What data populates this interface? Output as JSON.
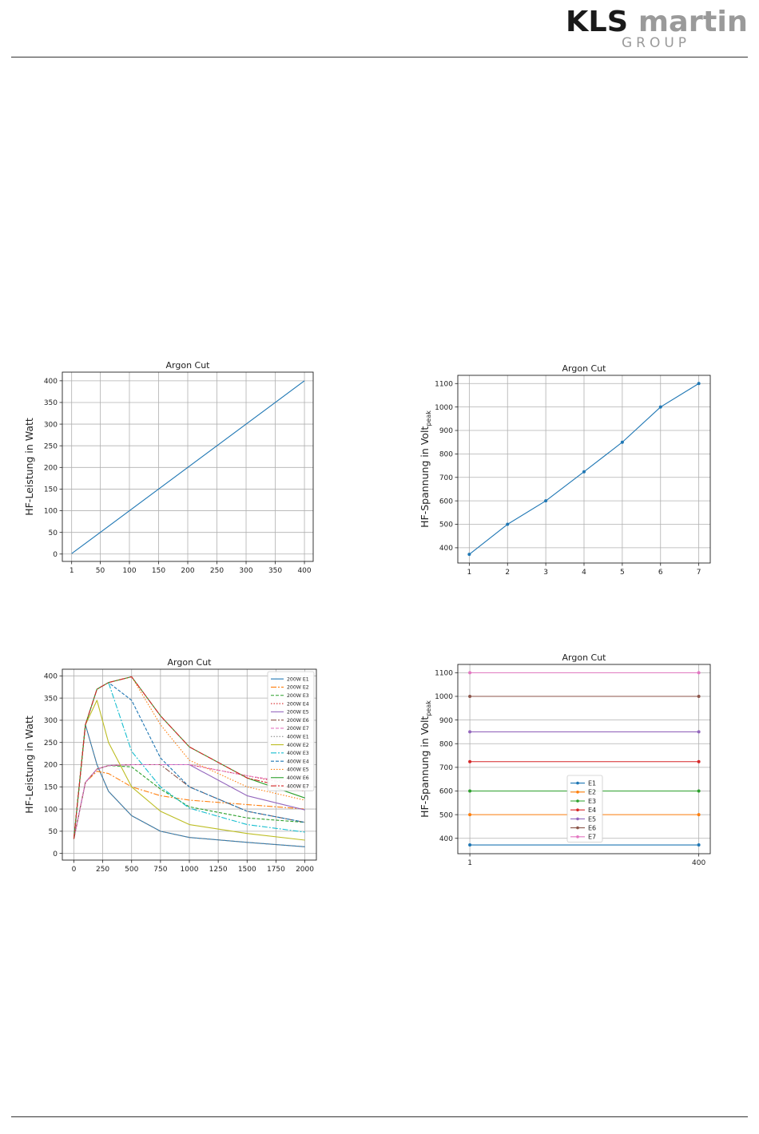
{
  "header": {
    "logo_primary": "KLS martin",
    "logo_secondary": "GROUP",
    "logo_color_dark": "#1a1a1a",
    "logo_color_light": "#9a9a9a"
  },
  "series_colors": [
    "#1f77b4",
    "#ff7f0e",
    "#2ca02c",
    "#d62728",
    "#9467bd",
    "#8c564b",
    "#e377c2",
    "#7f7f7f",
    "#bcbd22",
    "#17becf"
  ],
  "chart_data": [
    {
      "id": "c1",
      "type": "line",
      "title": "Argon Cut",
      "ylabel": "HF-Leistung in Watt",
      "xlim": [
        -15,
        415
      ],
      "ylim": [
        -17,
        420
      ],
      "xticks": [
        1,
        50,
        100,
        150,
        200,
        250,
        300,
        350,
        400
      ],
      "xtick_labels": [
        "1",
        "50",
        "100",
        "150",
        "200",
        "250",
        "300",
        "350",
        "400"
      ],
      "yticks": [
        0,
        50,
        100,
        150,
        200,
        250,
        300,
        350,
        400
      ],
      "grid": true,
      "legend": null,
      "series": [
        {
          "color": "#1f77b4",
          "dash": "",
          "markers": false,
          "x": [
            1,
            400
          ],
          "y": [
            1,
            400
          ]
        }
      ]
    },
    {
      "id": "c2",
      "type": "line",
      "title": "Argon Cut",
      "ylabel_main": "HF-Spannung in Volt",
      "ylabel_sub": "peak",
      "xlim": [
        0.7,
        7.3
      ],
      "ylim": [
        335,
        1135
      ],
      "xticks": [
        1,
        2,
        3,
        4,
        5,
        6,
        7
      ],
      "xtick_labels": [
        "1",
        "2",
        "3",
        "4",
        "5",
        "6",
        "7"
      ],
      "yticks": [
        400,
        500,
        600,
        700,
        800,
        900,
        1000,
        1100
      ],
      "grid": true,
      "legend": null,
      "series": [
        {
          "color": "#1f77b4",
          "dash": "",
          "markers": true,
          "x": [
            1,
            2,
            3,
            4,
            5,
            6,
            7
          ],
          "y": [
            372,
            500,
            600,
            724,
            850,
            1000,
            1100
          ]
        }
      ]
    },
    {
      "id": "c3",
      "type": "line",
      "title": "Argon Cut",
      "ylabel": "HF-Leistung in Watt",
      "xlim": [
        -100,
        2100
      ],
      "ylim": [
        -15,
        415
      ],
      "xticks": [
        0,
        250,
        500,
        750,
        1000,
        1250,
        1500,
        1750,
        2000
      ],
      "xtick_labels": [
        "0",
        "250",
        "500",
        "750",
        "1000",
        "1250",
        "1500",
        "1750",
        "2000"
      ],
      "yticks": [
        0,
        50,
        100,
        150,
        200,
        250,
        300,
        350,
        400
      ],
      "grid": true,
      "legend": "top-right",
      "series": [
        {
          "name": "200W E1",
          "color": "#1f77b4",
          "dash": "",
          "x": [
            0,
            100,
            200,
            300,
            500,
            750,
            1000,
            1500,
            2000
          ],
          "y": [
            33,
            290,
            200,
            140,
            85,
            50,
            36,
            25,
            15
          ]
        },
        {
          "name": "200W E2",
          "color": "#ff7f0e",
          "dash": "7 2 2 2",
          "x": [
            0,
            100,
            200,
            300,
            500,
            750,
            1000,
            1500,
            2000
          ],
          "y": [
            33,
            160,
            185,
            180,
            150,
            130,
            120,
            110,
            100
          ]
        },
        {
          "name": "200W E3",
          "color": "#2ca02c",
          "dash": "4 2",
          "x": [
            0,
            100,
            200,
            300,
            500,
            750,
            1000,
            1500,
            2000
          ],
          "y": [
            33,
            160,
            190,
            198,
            195,
            145,
            105,
            80,
            70
          ]
        },
        {
          "name": "200W E4",
          "color": "#d62728",
          "dash": "1.5 2",
          "x": [
            0,
            100,
            200,
            300,
            500,
            750,
            1000,
            1500,
            2000
          ],
          "y": [
            33,
            160,
            190,
            198,
            200,
            200,
            200,
            175,
            150
          ]
        },
        {
          "name": "200W E5",
          "color": "#9467bd",
          "dash": "",
          "x": [
            0,
            100,
            200,
            300,
            500,
            750,
            1000,
            1500,
            2000
          ],
          "y": [
            33,
            160,
            190,
            198,
            200,
            200,
            200,
            130,
            98
          ]
        },
        {
          "name": "200W E6",
          "color": "#8c564b",
          "dash": "7 2 2 2",
          "x": [
            0,
            100,
            200,
            300,
            500,
            750,
            1000,
            1500,
            2000
          ],
          "y": [
            33,
            160,
            190,
            198,
            200,
            200,
            150,
            95,
            70
          ]
        },
        {
          "name": "200W E7",
          "color": "#e377c2",
          "dash": "4 2",
          "x": [
            0,
            100,
            200,
            300,
            500,
            750,
            1000,
            1500,
            2000
          ],
          "y": [
            33,
            160,
            190,
            198,
            200,
            200,
            200,
            175,
            155
          ]
        },
        {
          "name": "400W E1",
          "color": "#7f7f7f",
          "dash": "1.5 2",
          "x": [
            0,
            100,
            200,
            300,
            500,
            750,
            1000,
            1500,
            2000
          ],
          "y": [
            33,
            290,
            200,
            140,
            85,
            50,
            36,
            25,
            15
          ]
        },
        {
          "name": "400W E2",
          "color": "#bcbd22",
          "dash": "",
          "x": [
            0,
            100,
            200,
            300,
            500,
            750,
            1000,
            1500,
            2000
          ],
          "y": [
            33,
            290,
            345,
            250,
            150,
            95,
            65,
            45,
            30
          ]
        },
        {
          "name": "400W E3",
          "color": "#17becf",
          "dash": "7 2 2 2",
          "x": [
            0,
            100,
            200,
            300,
            500,
            750,
            1000,
            1500,
            2000
          ],
          "y": [
            33,
            290,
            370,
            385,
            230,
            150,
            102,
            65,
            48
          ]
        },
        {
          "name": "400W E4",
          "color": "#1f77b4",
          "dash": "4 2",
          "x": [
            0,
            100,
            200,
            300,
            500,
            750,
            1000,
            1500,
            2000
          ],
          "y": [
            33,
            290,
            370,
            385,
            345,
            215,
            150,
            95,
            70
          ]
        },
        {
          "name": "400W E5",
          "color": "#ff7f0e",
          "dash": "1.5 2",
          "x": [
            0,
            100,
            200,
            300,
            500,
            750,
            1000,
            1500,
            2000
          ],
          "y": [
            33,
            290,
            370,
            385,
            398,
            290,
            210,
            150,
            120
          ]
        },
        {
          "name": "400W E6",
          "color": "#2ca02c",
          "dash": "",
          "x": [
            0,
            100,
            200,
            300,
            500,
            750,
            1000,
            1500,
            2000
          ],
          "y": [
            33,
            290,
            370,
            385,
            398,
            310,
            240,
            170,
            125
          ]
        },
        {
          "name": "400W E7",
          "color": "#d62728",
          "dash": "7 2 2 2",
          "x": [
            0,
            100,
            200,
            300,
            500,
            750,
            1000,
            1500,
            2000
          ],
          "y": [
            33,
            290,
            370,
            385,
            398,
            310,
            240,
            170,
            140
          ]
        }
      ]
    },
    {
      "id": "c4",
      "type": "line",
      "title": "Argon Cut",
      "ylabel_main": "HF-Spannung in Volt",
      "ylabel_sub": "peak",
      "xlim": [
        -20,
        420
      ],
      "ylim": [
        335,
        1135
      ],
      "xticks": [
        1,
        400
      ],
      "xtick_labels": [
        "1",
        "400"
      ],
      "yticks": [
        400,
        500,
        600,
        700,
        800,
        900,
        1000,
        1100
      ],
      "grid": true,
      "legend": "center",
      "series": [
        {
          "name": "E1",
          "color": "#1f77b4",
          "dash": "",
          "markers": true,
          "x": [
            1,
            400
          ],
          "y": [
            372,
            372
          ]
        },
        {
          "name": "E2",
          "color": "#ff7f0e",
          "dash": "",
          "markers": true,
          "x": [
            1,
            400
          ],
          "y": [
            500,
            500
          ]
        },
        {
          "name": "E3",
          "color": "#2ca02c",
          "dash": "",
          "markers": true,
          "x": [
            1,
            400
          ],
          "y": [
            600,
            600
          ]
        },
        {
          "name": "E4",
          "color": "#d62728",
          "dash": "",
          "markers": true,
          "x": [
            1,
            400
          ],
          "y": [
            724,
            724
          ]
        },
        {
          "name": "E5",
          "color": "#9467bd",
          "dash": "",
          "markers": true,
          "x": [
            1,
            400
          ],
          "y": [
            850,
            850
          ]
        },
        {
          "name": "E6",
          "color": "#8c564b",
          "dash": "",
          "markers": true,
          "x": [
            1,
            400
          ],
          "y": [
            1000,
            1000
          ]
        },
        {
          "name": "E7",
          "color": "#e377c2",
          "dash": "",
          "markers": true,
          "x": [
            1,
            400
          ],
          "y": [
            1100,
            1100
          ]
        }
      ]
    }
  ]
}
